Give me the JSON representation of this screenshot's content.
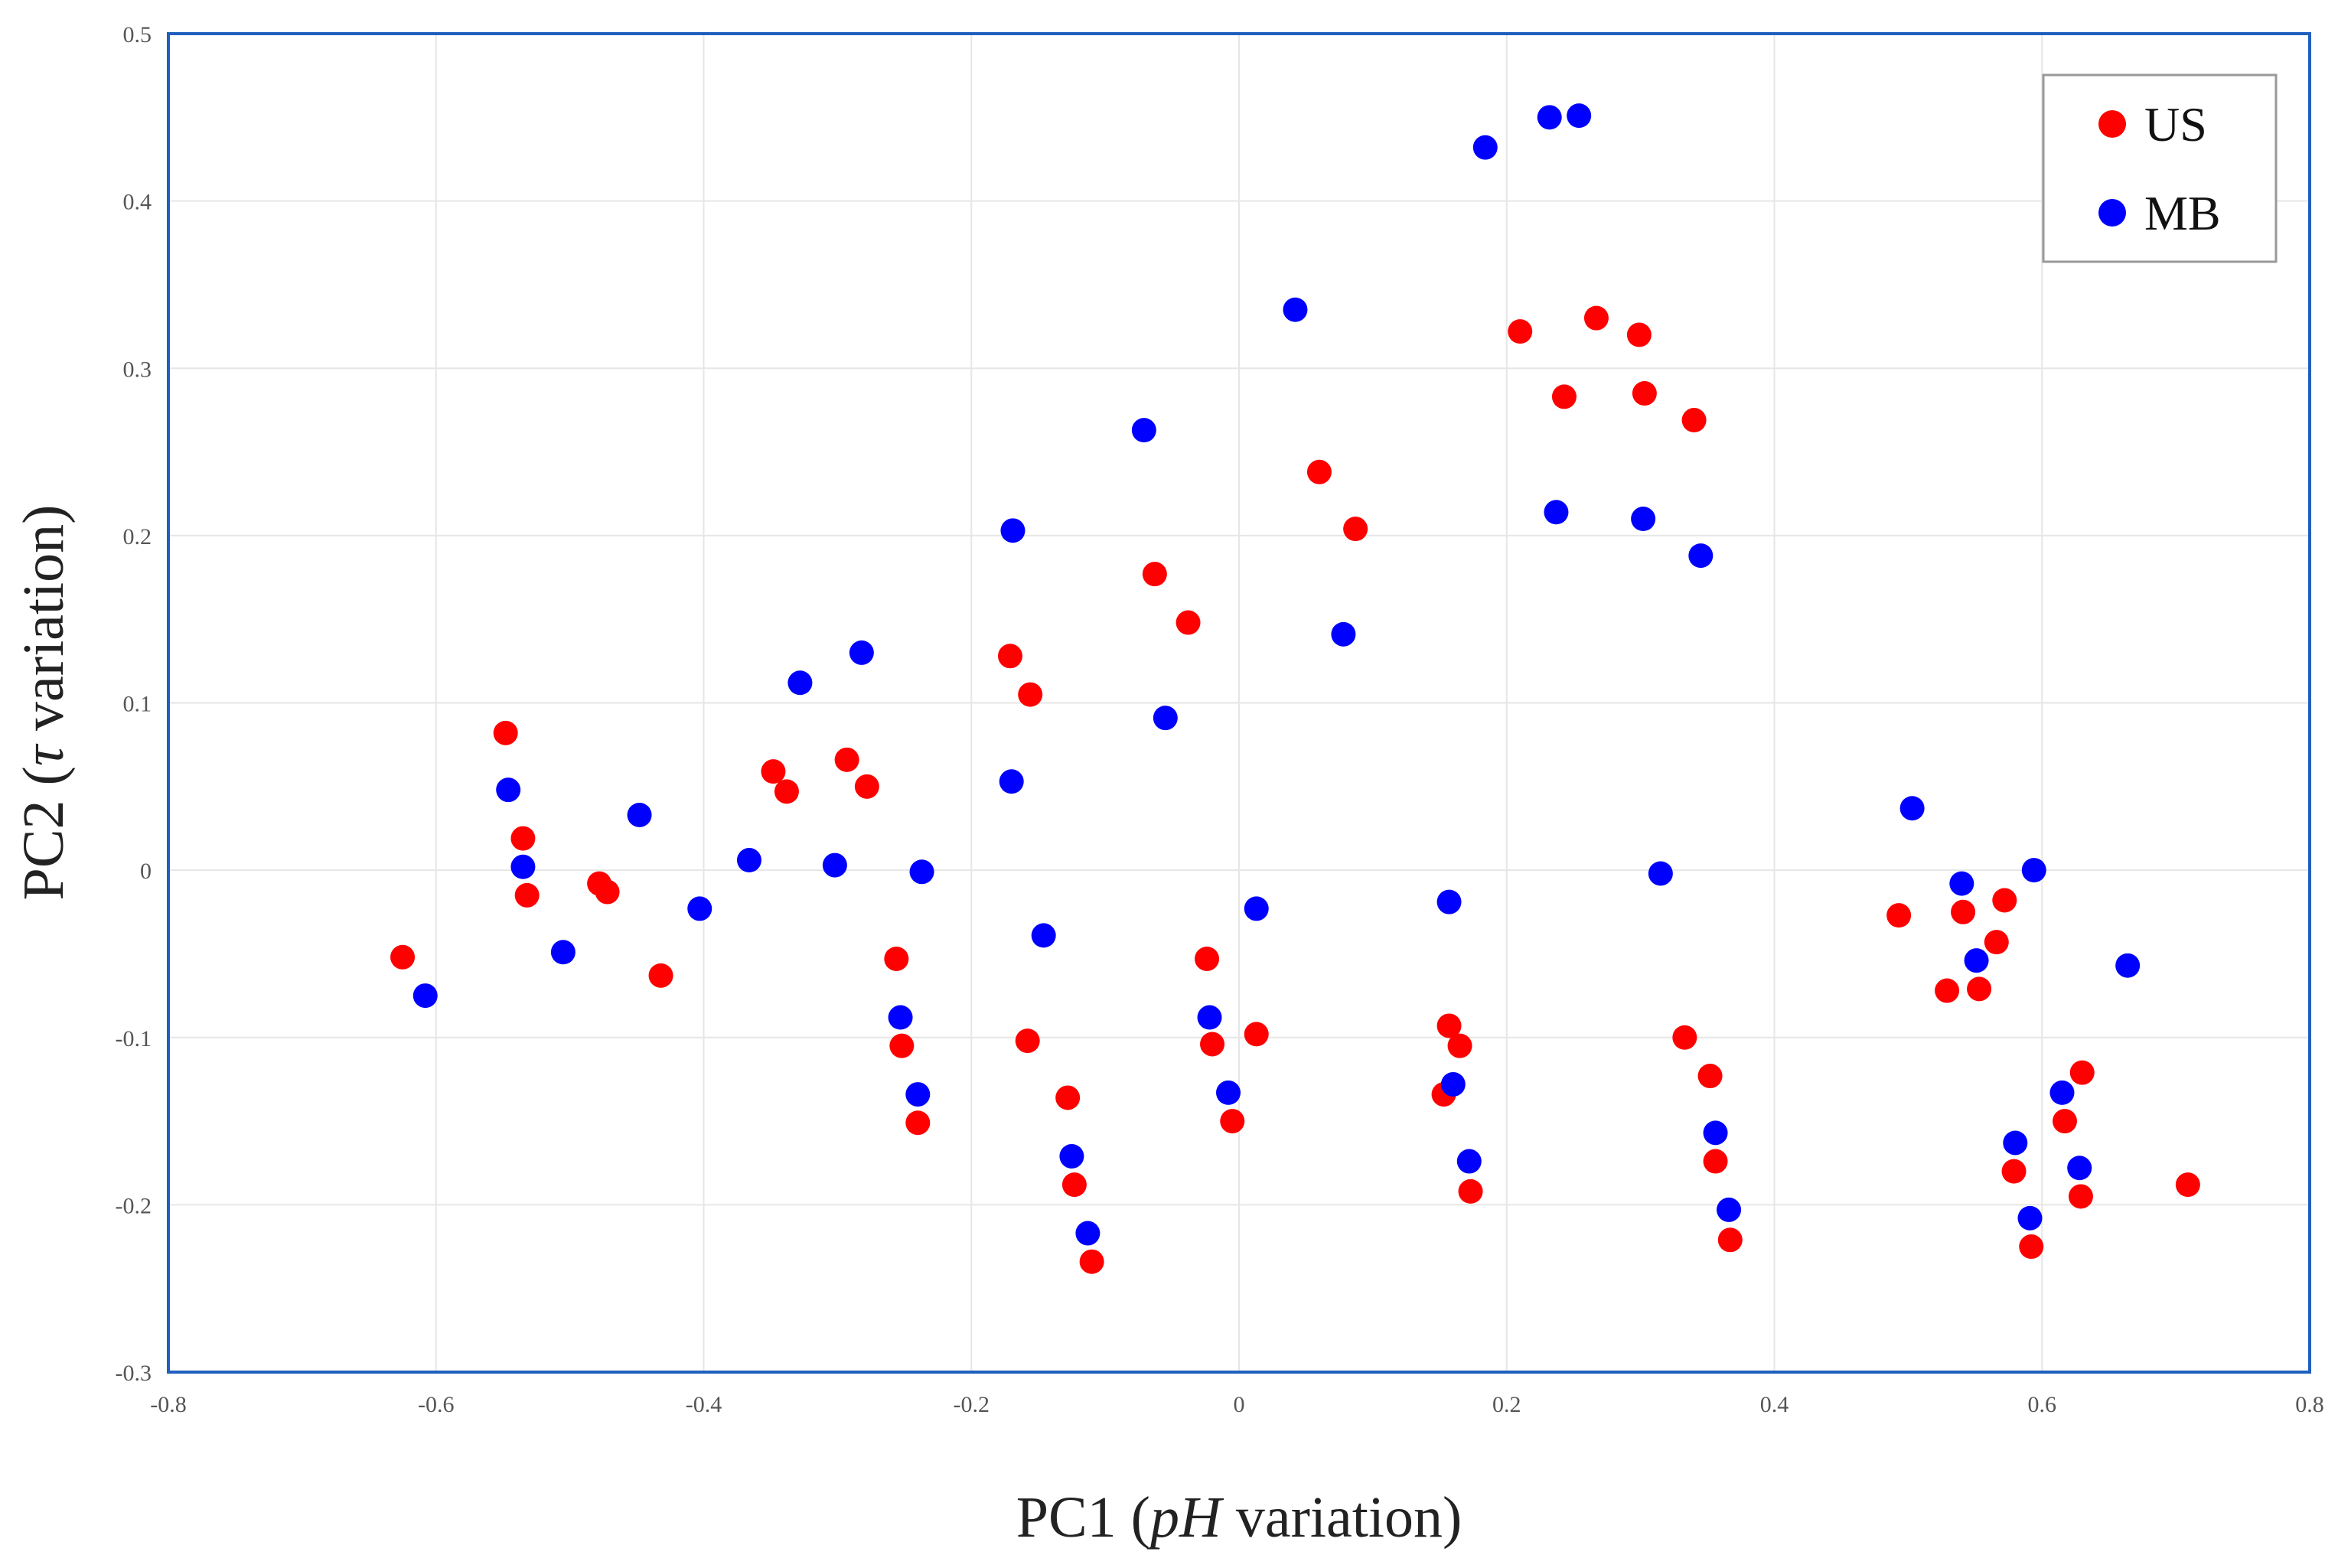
{
  "chart_data": {
    "type": "scatter",
    "title": "",
    "xlabel": {
      "prefix": "PC1 (",
      "italic": "pH",
      "suffix": " variation)"
    },
    "ylabel": {
      "prefix": "PC2 (",
      "italic": "τ",
      "suffix": " variation)"
    },
    "xlim": [
      -0.8,
      0.8
    ],
    "ylim": [
      -0.3,
      0.5
    ],
    "xticks": [
      -0.8,
      -0.6,
      -0.4,
      -0.2,
      0,
      0.2,
      0.4,
      0.6,
      0.8
    ],
    "yticks": [
      -0.3,
      -0.2,
      -0.1,
      0,
      0.1,
      0.2,
      0.3,
      0.4,
      0.5
    ],
    "xtick_labels": [
      "-0.8",
      "-0.6",
      "-0.4",
      "-0.2",
      "0",
      "0.2",
      "0.4",
      "0.6",
      "0.8"
    ],
    "ytick_labels": [
      "-0.3",
      "-0.2",
      "-0.1",
      "0",
      "0.1",
      "0.2",
      "0.3",
      "0.4",
      "0.5"
    ],
    "grid": true,
    "legend_position": "top-right",
    "series": [
      {
        "name": "US",
        "color": "#ff0000",
        "points": [
          [
            -0.625,
            -0.052
          ],
          [
            -0.548,
            0.082
          ],
          [
            -0.535,
            0.019
          ],
          [
            -0.532,
            -0.015
          ],
          [
            -0.478,
            -0.008
          ],
          [
            -0.472,
            -0.013
          ],
          [
            -0.432,
            -0.063
          ],
          [
            -0.348,
            0.059
          ],
          [
            -0.338,
            0.047
          ],
          [
            -0.293,
            0.066
          ],
          [
            -0.278,
            0.05
          ],
          [
            -0.256,
            -0.053
          ],
          [
            -0.252,
            -0.105
          ],
          [
            -0.24,
            -0.151
          ],
          [
            -0.171,
            0.128
          ],
          [
            -0.156,
            0.105
          ],
          [
            -0.158,
            -0.102
          ],
          [
            -0.128,
            -0.136
          ],
          [
            -0.123,
            -0.188
          ],
          [
            -0.11,
            -0.234
          ],
          [
            -0.063,
            0.177
          ],
          [
            -0.038,
            0.148
          ],
          [
            -0.024,
            -0.053
          ],
          [
            -0.02,
            -0.104
          ],
          [
            -0.005,
            -0.15
          ],
          [
            0.013,
            -0.098
          ],
          [
            0.06,
            0.238
          ],
          [
            0.087,
            0.204
          ],
          [
            0.153,
            -0.134
          ],
          [
            0.157,
            -0.093
          ],
          [
            0.165,
            -0.105
          ],
          [
            0.173,
            -0.192
          ],
          [
            0.21,
            0.322
          ],
          [
            0.243,
            0.283
          ],
          [
            0.267,
            0.33
          ],
          [
            0.299,
            0.32
          ],
          [
            0.303,
            0.285
          ],
          [
            0.333,
            -0.1
          ],
          [
            0.34,
            0.269
          ],
          [
            0.352,
            -0.123
          ],
          [
            0.356,
            -0.174
          ],
          [
            0.367,
            -0.221
          ],
          [
            0.493,
            -0.027
          ],
          [
            0.529,
            -0.072
          ],
          [
            0.541,
            -0.025
          ],
          [
            0.553,
            -0.071
          ],
          [
            0.566,
            -0.043
          ],
          [
            0.572,
            -0.018
          ],
          [
            0.579,
            -0.18
          ],
          [
            0.617,
            -0.15
          ],
          [
            0.63,
            -0.121
          ],
          [
            0.629,
            -0.195
          ],
          [
            0.592,
            -0.225
          ],
          [
            0.709,
            -0.188
          ]
        ]
      },
      {
        "name": "MB",
        "color": "#0000ff",
        "points": [
          [
            -0.608,
            -0.075
          ],
          [
            -0.546,
            0.048
          ],
          [
            -0.535,
            0.002
          ],
          [
            -0.505,
            -0.049
          ],
          [
            -0.448,
            0.033
          ],
          [
            -0.403,
            -0.023
          ],
          [
            -0.366,
            0.006
          ],
          [
            -0.328,
            0.112
          ],
          [
            -0.302,
            0.003
          ],
          [
            -0.282,
            0.13
          ],
          [
            -0.237,
            -0.001
          ],
          [
            -0.253,
            -0.088
          ],
          [
            -0.24,
            -0.134
          ],
          [
            -0.169,
            0.203
          ],
          [
            -0.17,
            0.053
          ],
          [
            -0.146,
            -0.039
          ],
          [
            -0.125,
            -0.171
          ],
          [
            -0.113,
            -0.217
          ],
          [
            -0.071,
            0.263
          ],
          [
            -0.055,
            0.091
          ],
          [
            -0.022,
            -0.088
          ],
          [
            -0.008,
            -0.133
          ],
          [
            0.013,
            -0.023
          ],
          [
            0.042,
            0.335
          ],
          [
            0.078,
            0.141
          ],
          [
            0.157,
            -0.019
          ],
          [
            0.16,
            -0.128
          ],
          [
            0.172,
            -0.174
          ],
          [
            0.184,
            0.432
          ],
          [
            0.232,
            0.45
          ],
          [
            0.254,
            0.451
          ],
          [
            0.237,
            0.214
          ],
          [
            0.302,
            0.21
          ],
          [
            0.315,
            -0.002
          ],
          [
            0.345,
            0.188
          ],
          [
            0.356,
            -0.157
          ],
          [
            0.366,
            -0.203
          ],
          [
            0.503,
            0.037
          ],
          [
            0.54,
            -0.008
          ],
          [
            0.551,
            -0.054
          ],
          [
            0.594,
            0.0
          ],
          [
            0.58,
            -0.163
          ],
          [
            0.591,
            -0.208
          ],
          [
            0.615,
            -0.133
          ],
          [
            0.628,
            -0.178
          ],
          [
            0.664,
            -0.057
          ]
        ]
      }
    ]
  }
}
